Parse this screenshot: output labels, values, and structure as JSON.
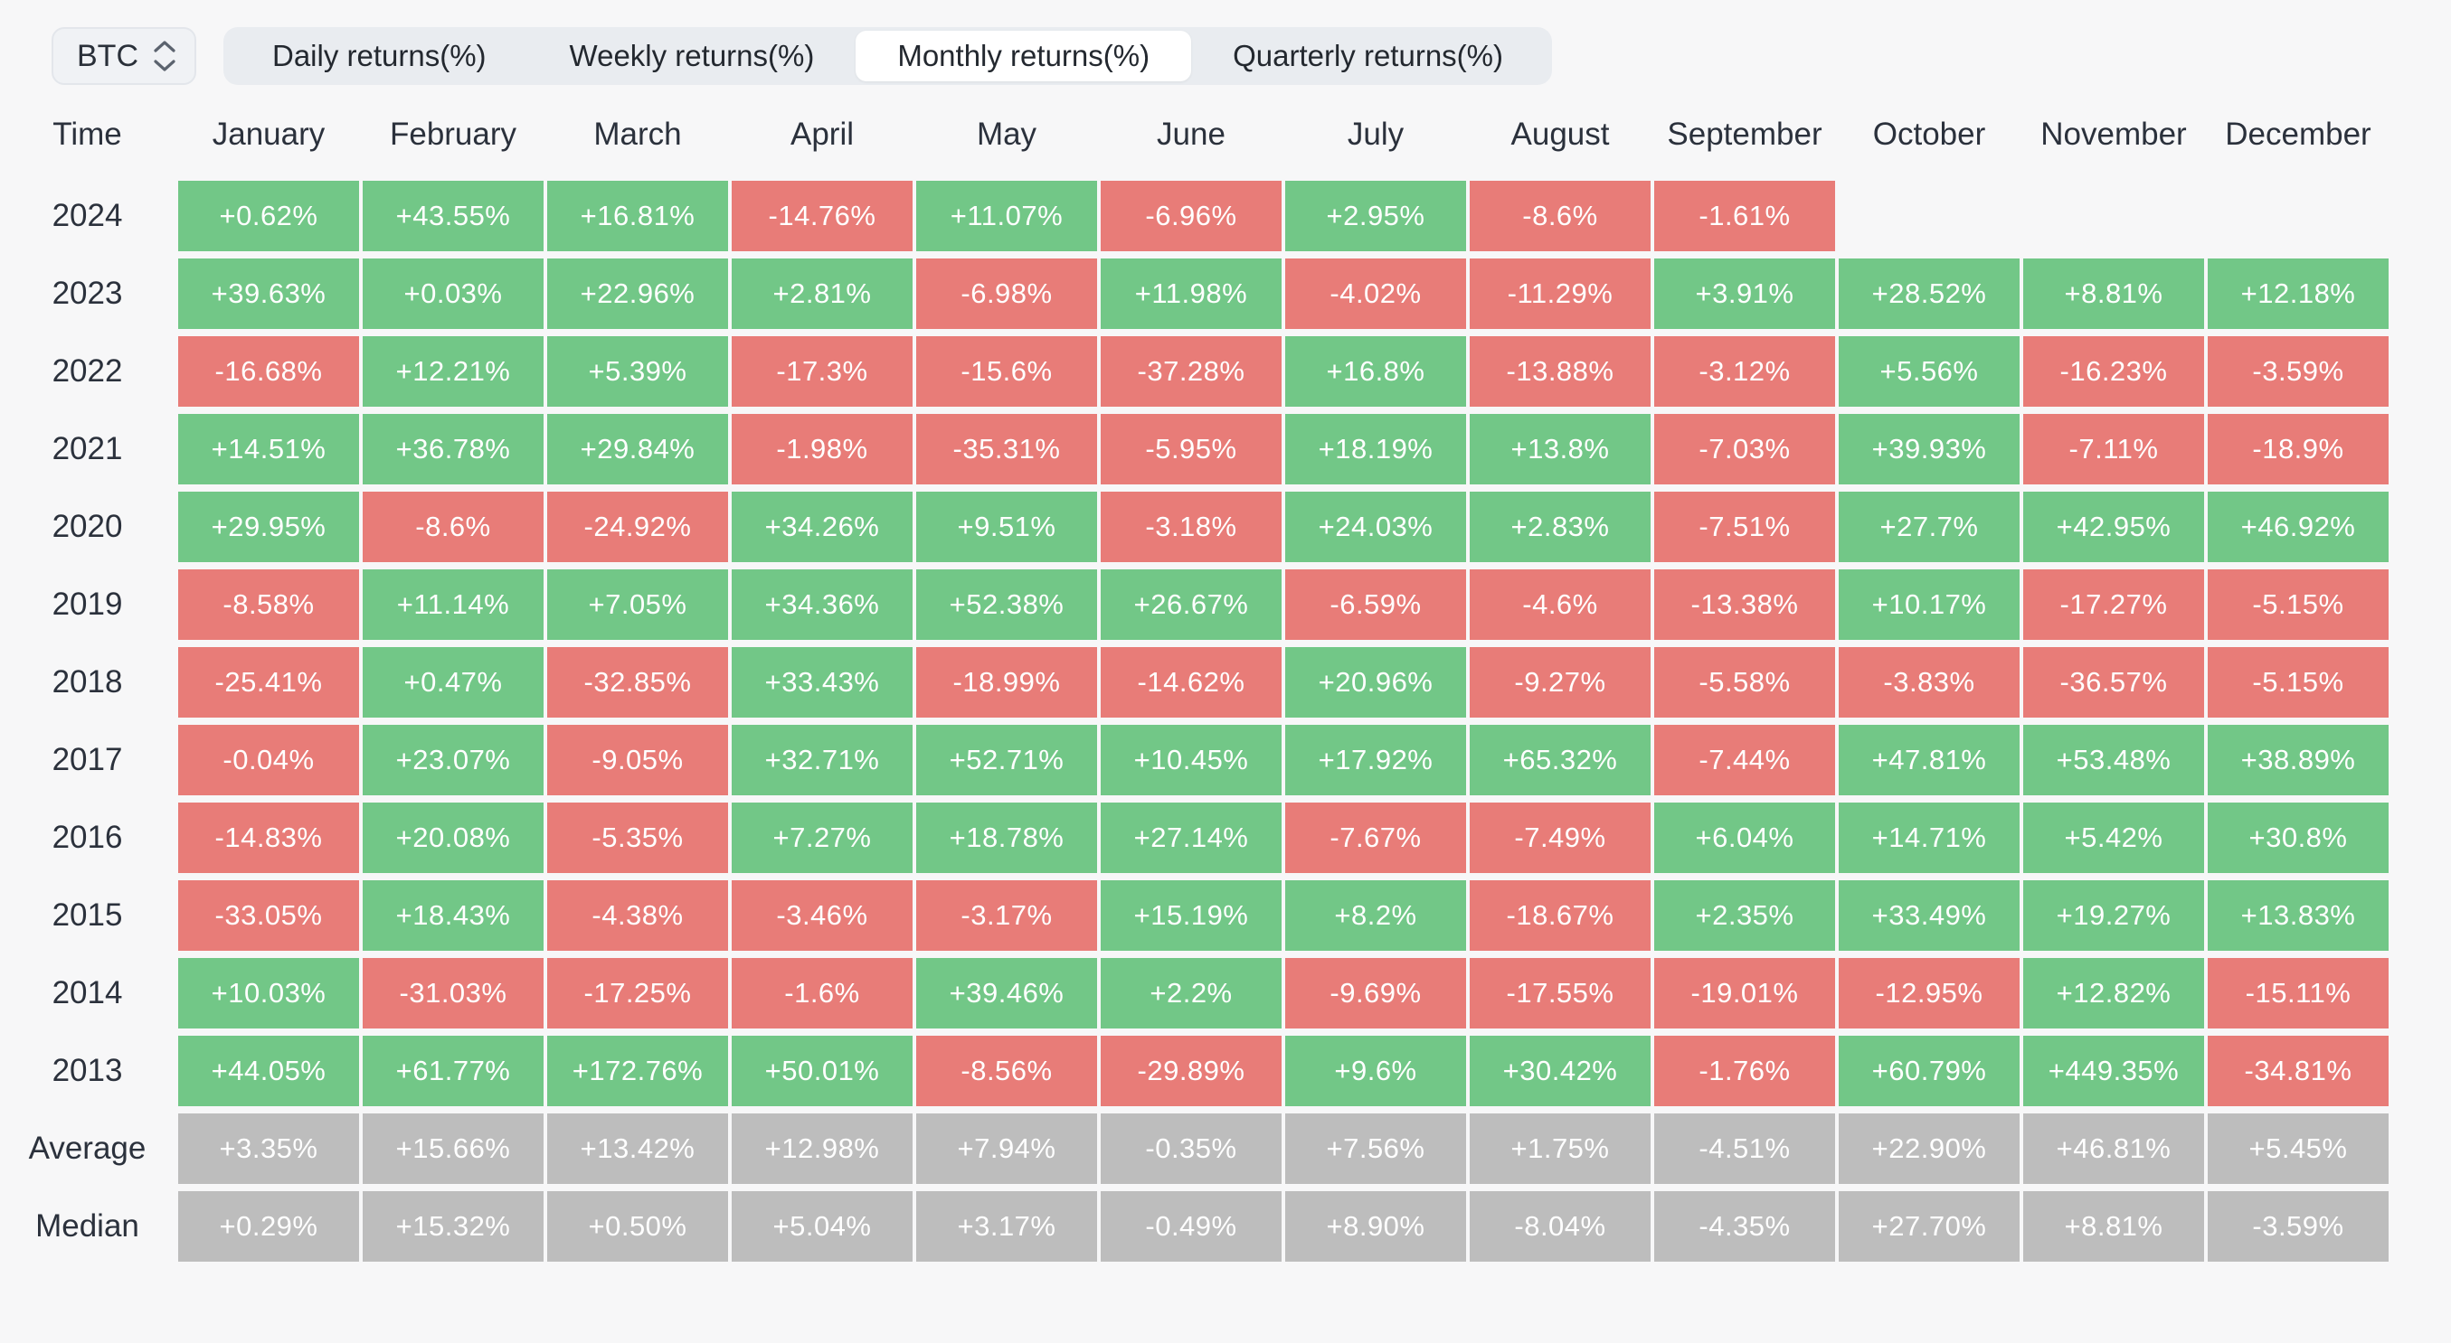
{
  "controls": {
    "symbol": "BTC",
    "tabs": [
      {
        "label": "Daily returns(%)",
        "active": false
      },
      {
        "label": "Weekly returns(%)",
        "active": false
      },
      {
        "label": "Monthly returns(%)",
        "active": true
      },
      {
        "label": "Quarterly returns(%)",
        "active": false
      }
    ]
  },
  "colors": {
    "positive": "#72c787",
    "negative": "#e87c78",
    "summary": "#bdbdbd"
  },
  "table": {
    "time_header": "Time",
    "month_headers": [
      "January",
      "February",
      "March",
      "April",
      "May",
      "June",
      "July",
      "August",
      "September",
      "October",
      "November",
      "December"
    ],
    "rows": [
      {
        "label": "2024",
        "type": "year",
        "values": [
          "+0.62%",
          "+43.55%",
          "+16.81%",
          "-14.76%",
          "+11.07%",
          "-6.96%",
          "+2.95%",
          "-8.6%",
          "-1.61%",
          "",
          "",
          ""
        ]
      },
      {
        "label": "2023",
        "type": "year",
        "values": [
          "+39.63%",
          "+0.03%",
          "+22.96%",
          "+2.81%",
          "-6.98%",
          "+11.98%",
          "-4.02%",
          "-11.29%",
          "+3.91%",
          "+28.52%",
          "+8.81%",
          "+12.18%"
        ]
      },
      {
        "label": "2022",
        "type": "year",
        "values": [
          "-16.68%",
          "+12.21%",
          "+5.39%",
          "-17.3%",
          "-15.6%",
          "-37.28%",
          "+16.8%",
          "-13.88%",
          "-3.12%",
          "+5.56%",
          "-16.23%",
          "-3.59%"
        ]
      },
      {
        "label": "2021",
        "type": "year",
        "values": [
          "+14.51%",
          "+36.78%",
          "+29.84%",
          "-1.98%",
          "-35.31%",
          "-5.95%",
          "+18.19%",
          "+13.8%",
          "-7.03%",
          "+39.93%",
          "-7.11%",
          "-18.9%"
        ]
      },
      {
        "label": "2020",
        "type": "year",
        "values": [
          "+29.95%",
          "-8.6%",
          "-24.92%",
          "+34.26%",
          "+9.51%",
          "-3.18%",
          "+24.03%",
          "+2.83%",
          "-7.51%",
          "+27.7%",
          "+42.95%",
          "+46.92%"
        ]
      },
      {
        "label": "2019",
        "type": "year",
        "values": [
          "-8.58%",
          "+11.14%",
          "+7.05%",
          "+34.36%",
          "+52.38%",
          "+26.67%",
          "-6.59%",
          "-4.6%",
          "-13.38%",
          "+10.17%",
          "-17.27%",
          "-5.15%"
        ]
      },
      {
        "label": "2018",
        "type": "year",
        "values": [
          "-25.41%",
          "+0.47%",
          "-32.85%",
          "+33.43%",
          "-18.99%",
          "-14.62%",
          "+20.96%",
          "-9.27%",
          "-5.58%",
          "-3.83%",
          "-36.57%",
          "-5.15%"
        ]
      },
      {
        "label": "2017",
        "type": "year",
        "values": [
          "-0.04%",
          "+23.07%",
          "-9.05%",
          "+32.71%",
          "+52.71%",
          "+10.45%",
          "+17.92%",
          "+65.32%",
          "-7.44%",
          "+47.81%",
          "+53.48%",
          "+38.89%"
        ]
      },
      {
        "label": "2016",
        "type": "year",
        "values": [
          "-14.83%",
          "+20.08%",
          "-5.35%",
          "+7.27%",
          "+18.78%",
          "+27.14%",
          "-7.67%",
          "-7.49%",
          "+6.04%",
          "+14.71%",
          "+5.42%",
          "+30.8%"
        ]
      },
      {
        "label": "2015",
        "type": "year",
        "values": [
          "-33.05%",
          "+18.43%",
          "-4.38%",
          "-3.46%",
          "-3.17%",
          "+15.19%",
          "+8.2%",
          "-18.67%",
          "+2.35%",
          "+33.49%",
          "+19.27%",
          "+13.83%"
        ]
      },
      {
        "label": "2014",
        "type": "year",
        "values": [
          "+10.03%",
          "-31.03%",
          "-17.25%",
          "-1.6%",
          "+39.46%",
          "+2.2%",
          "-9.69%",
          "-17.55%",
          "-19.01%",
          "-12.95%",
          "+12.82%",
          "-15.11%"
        ]
      },
      {
        "label": "2013",
        "type": "year",
        "values": [
          "+44.05%",
          "+61.77%",
          "+172.76%",
          "+50.01%",
          "-8.56%",
          "-29.89%",
          "+9.6%",
          "+30.42%",
          "-1.76%",
          "+60.79%",
          "+449.35%",
          "-34.81%"
        ]
      },
      {
        "label": "Average",
        "type": "summary",
        "values": [
          "+3.35%",
          "+15.66%",
          "+13.42%",
          "+12.98%",
          "+7.94%",
          "-0.35%",
          "+7.56%",
          "+1.75%",
          "-4.51%",
          "+22.90%",
          "+46.81%",
          "+5.45%"
        ]
      },
      {
        "label": "Median",
        "type": "summary",
        "values": [
          "+0.29%",
          "+15.32%",
          "+0.50%",
          "+5.04%",
          "+3.17%",
          "-0.49%",
          "+8.90%",
          "-8.04%",
          "-4.35%",
          "+27.70%",
          "+8.81%",
          "-3.59%"
        ]
      }
    ]
  }
}
